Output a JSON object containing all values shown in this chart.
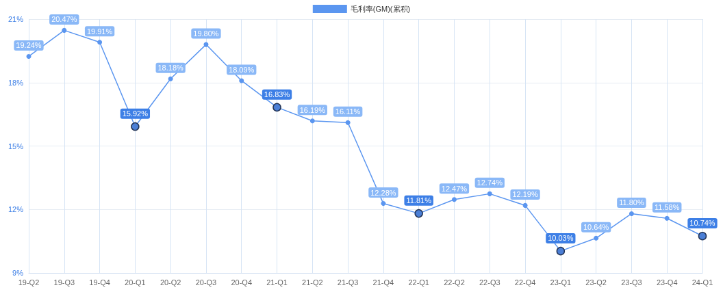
{
  "chart_data": {
    "type": "line",
    "categories": [
      "19-Q2",
      "19-Q3",
      "19-Q4",
      "20-Q1",
      "20-Q2",
      "20-Q3",
      "20-Q4",
      "21-Q1",
      "21-Q2",
      "21-Q3",
      "21-Q4",
      "22-Q1",
      "22-Q2",
      "22-Q3",
      "22-Q4",
      "23-Q1",
      "23-Q2",
      "23-Q3",
      "23-Q4",
      "24-Q1"
    ],
    "series": [
      {
        "name": "毛利率(GM)(累积)",
        "color": "#5b96f0",
        "values": [
          19.24,
          20.47,
          19.91,
          15.92,
          18.18,
          19.8,
          18.09,
          16.83,
          16.19,
          16.11,
          12.28,
          11.81,
          12.47,
          12.74,
          12.19,
          10.03,
          10.64,
          11.8,
          11.58,
          10.74
        ],
        "colors": [
          "#8ab8f7",
          "#8ab8f7",
          "#8ab8f7",
          "#3d7fe6",
          "#8ab8f7",
          "#8ab8f7",
          "#8ab8f7",
          "#3d7fe6",
          "#8ab8f7",
          "#8ab8f7",
          "#8ab8f7",
          "#3d7fe6",
          "#8ab8f7",
          "#8ab8f7",
          "#8ab8f7",
          "#3d7fe6",
          "#8ab8f7",
          "#8ab8f7",
          "#8ab8f7",
          "#3d7fe6"
        ],
        "value_labels": [
          "19.24%",
          "20.47%",
          "19.91%",
          "15.92%",
          "18.18%",
          "19.80%",
          "18.09%",
          "16.83%",
          "16.19%",
          "16.11%",
          "12.28%",
          "11.81%",
          "12.47%",
          "12.74%",
          "12.19%",
          "10.03%",
          "10.64%",
          "11.80%",
          "11.58%",
          "10.74%"
        ]
      }
    ],
    "ylim": [
      9,
      21
    ],
    "yticks": [
      {
        "value": 9,
        "label": "9%"
      },
      {
        "value": 12,
        "label": "12%"
      },
      {
        "value": 15,
        "label": "15%"
      },
      {
        "value": 18,
        "label": "18%"
      },
      {
        "value": 21,
        "label": "21%"
      }
    ],
    "grid": true,
    "legend": "top",
    "marker": "circle",
    "line_style": "solid"
  }
}
